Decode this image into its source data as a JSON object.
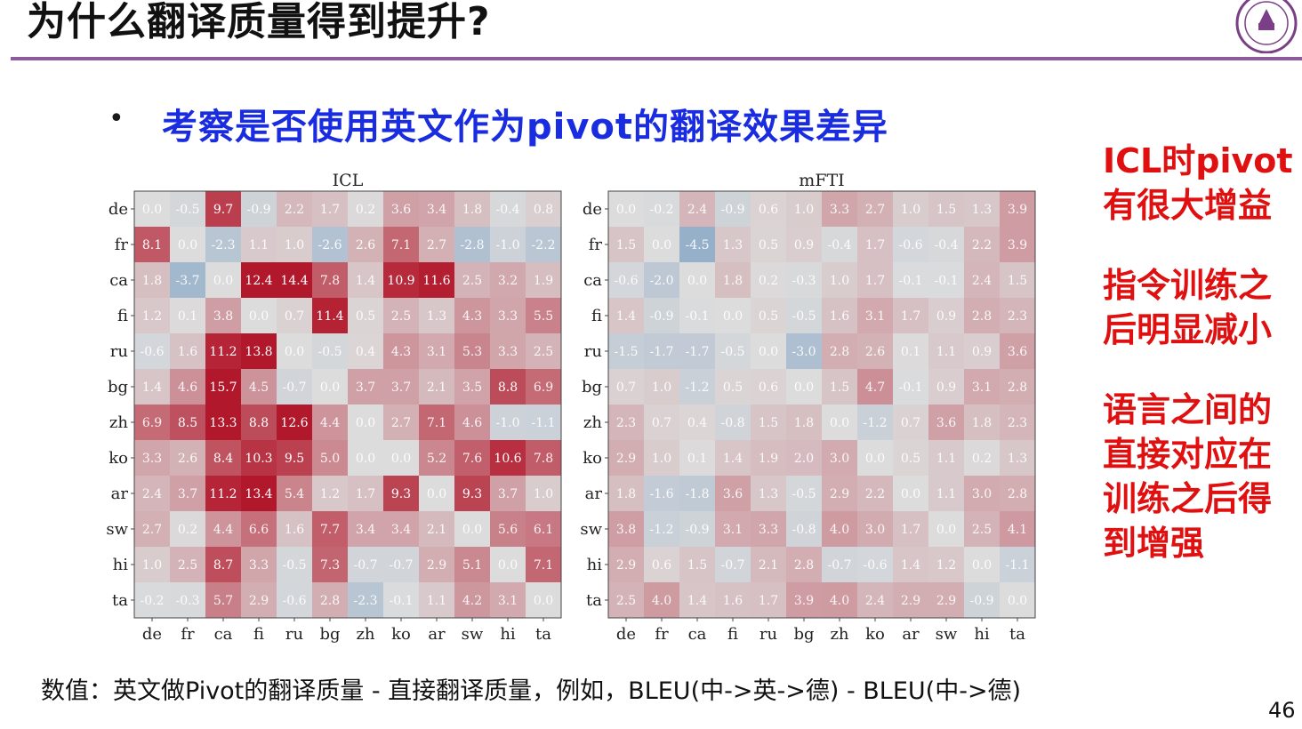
{
  "slide": {
    "title": "为什么翻译质量得到提升?",
    "bullet_symbol": "•",
    "subtitle": "考察是否使用英文作为pivot的翻译效果差异",
    "side_notes": [
      [
        "ICL时pivot",
        "有很大增益"
      ],
      [
        "指令训练之",
        "后明显减小"
      ],
      [
        "语言之间的",
        "直接对应在",
        "训练之后得",
        "到增强"
      ]
    ],
    "footnote": "数值：英文做Pivot的翻译质量 - 直接翻译质量，例如，BLEU(中->英->德) - BLEU(中->德)",
    "page_number": "46",
    "logo": "nanjing-university-seal"
  },
  "colors": {
    "title_rule": "#8e5a9b",
    "subtitle": "#1a2ce0",
    "side_notes": "#e01010",
    "heatmap_positive": "#b2182b",
    "heatmap_neutral": "#dcdcdc",
    "heatmap_negative": "#2166ac"
  },
  "chart_data": [
    {
      "type": "heatmap",
      "title": "ICL",
      "x_labels": [
        "de",
        "fr",
        "ca",
        "fi",
        "ru",
        "bg",
        "zh",
        "ko",
        "ar",
        "sw",
        "hi",
        "ta"
      ],
      "y_labels": [
        "de",
        "fr",
        "ca",
        "fi",
        "ru",
        "bg",
        "zh",
        "ko",
        "ar",
        "sw",
        "hi",
        "ta"
      ],
      "color_range": [
        -12,
        12
      ],
      "values": [
        [
          0.0,
          -0.5,
          9.7,
          -0.9,
          2.2,
          1.7,
          0.2,
          3.6,
          3.4,
          1.8,
          -0.4,
          0.8
        ],
        [
          8.1,
          0.0,
          -2.3,
          1.1,
          1.0,
          -2.6,
          2.6,
          7.1,
          2.7,
          -2.8,
          -1.0,
          -2.2
        ],
        [
          1.8,
          -3.7,
          0.0,
          12.4,
          14.4,
          7.8,
          1.4,
          10.9,
          11.6,
          2.5,
          3.2,
          1.9
        ],
        [
          1.2,
          0.1,
          3.8,
          0.0,
          0.7,
          11.4,
          0.5,
          2.5,
          1.3,
          4.3,
          3.3,
          5.5
        ],
        [
          -0.6,
          1.6,
          11.2,
          13.8,
          0.0,
          -0.5,
          0.4,
          4.3,
          3.1,
          5.3,
          3.3,
          2.5
        ],
        [
          1.4,
          4.6,
          15.7,
          4.5,
          -0.7,
          0.0,
          3.7,
          3.7,
          2.1,
          3.5,
          8.8,
          6.9
        ],
        [
          6.9,
          8.5,
          13.3,
          8.8,
          12.6,
          4.4,
          0.0,
          2.7,
          7.1,
          4.6,
          -1.0,
          -1.1
        ],
        [
          3.3,
          2.6,
          8.4,
          10.3,
          9.5,
          5.0,
          -0.0,
          0.0,
          5.2,
          7.6,
          10.6,
          7.8
        ],
        [
          2.4,
          3.7,
          11.2,
          13.4,
          5.4,
          1.2,
          1.7,
          9.3,
          0.0,
          9.3,
          3.7,
          1.0
        ],
        [
          2.7,
          0.2,
          4.4,
          6.6,
          1.6,
          7.7,
          3.4,
          3.4,
          2.1,
          0.0,
          5.6,
          6.1
        ],
        [
          1.0,
          2.5,
          8.7,
          3.3,
          -0.5,
          7.3,
          -0.7,
          -0.7,
          2.9,
          5.1,
          0.0,
          7.1
        ],
        [
          -0.2,
          -0.3,
          5.7,
          2.9,
          -0.6,
          2.8,
          -2.3,
          -0.1,
          1.1,
          4.2,
          3.1,
          0.0
        ]
      ]
    },
    {
      "type": "heatmap",
      "title": "mFTI",
      "x_labels": [
        "de",
        "fr",
        "ca",
        "fi",
        "ru",
        "bg",
        "zh",
        "ko",
        "ar",
        "sw",
        "hi",
        "ta"
      ],
      "y_labels": [
        "de",
        "fr",
        "ca",
        "fi",
        "ru",
        "bg",
        "zh",
        "ko",
        "ar",
        "sw",
        "hi",
        "ta"
      ],
      "color_range": [
        -12,
        12
      ],
      "values": [
        [
          0.0,
          -0.2,
          2.4,
          -0.9,
          0.6,
          1.0,
          3.3,
          2.7,
          1.0,
          1.5,
          1.3,
          3.9
        ],
        [
          1.5,
          0.0,
          -4.5,
          1.3,
          0.5,
          0.9,
          -0.4,
          1.7,
          -0.6,
          -0.4,
          2.2,
          3.9
        ],
        [
          -0.6,
          -2.0,
          0.0,
          1.8,
          0.2,
          -0.3,
          1.0,
          1.7,
          -0.1,
          -0.1,
          2.4,
          1.5
        ],
        [
          1.4,
          -0.9,
          -0.1,
          0.0,
          0.5,
          -0.5,
          1.6,
          3.1,
          1.7,
          0.9,
          2.8,
          2.3
        ],
        [
          -1.5,
          -1.7,
          -1.7,
          -0.5,
          0.0,
          -3.0,
          2.8,
          2.6,
          0.1,
          1.1,
          0.9,
          3.6
        ],
        [
          0.7,
          1.0,
          -1.2,
          0.5,
          0.6,
          0.0,
          1.5,
          4.7,
          -0.1,
          0.9,
          3.1,
          2.8
        ],
        [
          2.3,
          0.7,
          0.4,
          -0.8,
          1.5,
          1.8,
          0.0,
          -1.2,
          0.7,
          3.6,
          1.8,
          2.3
        ],
        [
          2.9,
          1.0,
          0.1,
          1.4,
          1.9,
          2.0,
          3.0,
          0.0,
          0.5,
          1.1,
          0.2,
          1.3
        ],
        [
          1.8,
          -1.6,
          -1.8,
          3.6,
          1.3,
          -0.5,
          2.9,
          2.2,
          0.0,
          1.1,
          3.0,
          2.8
        ],
        [
          3.8,
          -1.2,
          -0.9,
          3.1,
          3.3,
          -0.8,
          4.0,
          3.0,
          1.7,
          0.0,
          2.5,
          4.1
        ],
        [
          2.9,
          0.6,
          1.5,
          -0.7,
          2.1,
          2.8,
          -0.7,
          -0.6,
          1.4,
          1.2,
          0.0,
          -1.1
        ],
        [
          2.5,
          4.0,
          1.4,
          1.6,
          1.7,
          3.9,
          4.0,
          2.4,
          2.9,
          2.9,
          -0.9,
          0.0
        ]
      ]
    }
  ]
}
